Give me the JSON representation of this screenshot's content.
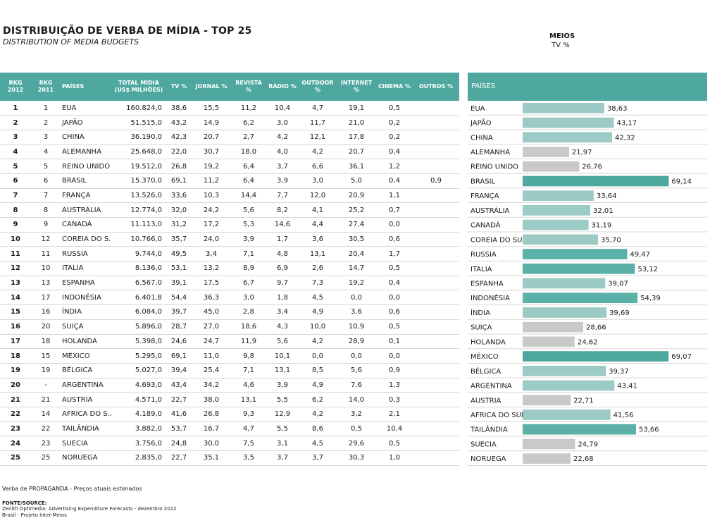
{
  "title": "DISTRIBUIÇÃO DE VERBA DE MÍDIA - TOP 25",
  "subtitle": "DISTRIBUTION OF MEDIA BUDGETS",
  "meios_label": "MEIOS",
  "meios_sub": "TV %",
  "table": {
    "headers": {
      "rkg2012": "RKG 2012",
      "rkg2011": "RKG 2011",
      "paises": "PAÍSES",
      "total": "TOTAL MÍDIA (US$ MILHÕES)",
      "tv": "TV %",
      "jornal": "JORNAL %",
      "revista": "REVISTA %",
      "radio": "RÁDIO %",
      "outdoor": "OUTDOOR %",
      "internet": "INTERNET %",
      "cinema": "CINEMA %",
      "outros": "OUTROS %"
    },
    "rows": [
      [
        "1",
        "1",
        "EUA",
        "160.824,0",
        "38,6",
        "15,5",
        "11,2",
        "10,4",
        "4,7",
        "19,1",
        "0,5",
        ""
      ],
      [
        "2",
        "2",
        "JAPÃO",
        "51.515,0",
        "43,2",
        "14,9",
        "6,2",
        "3,0",
        "11,7",
        "21,0",
        "0,2",
        ""
      ],
      [
        "3",
        "3",
        "CHINA",
        "36.190,0",
        "42,3",
        "20,7",
        "2,7",
        "4,2",
        "12,1",
        "17,8",
        "0,2",
        ""
      ],
      [
        "4",
        "4",
        "ALEMANHA",
        "25.648,0",
        "22,0",
        "30,7",
        "18,0",
        "4,0",
        "4,2",
        "20,7",
        "0,4",
        ""
      ],
      [
        "5",
        "5",
        "REINO UNIDO",
        "19.512,0",
        "26,8",
        "19,2",
        "6,4",
        "3,7",
        "6,6",
        "36,1",
        "1,2",
        ""
      ],
      [
        "6",
        "6",
        "BRASIL",
        "15.370,0",
        "69,1",
        "11,2",
        "6,4",
        "3,9",
        "3,0",
        "5,0",
        "0,4",
        "0,9"
      ],
      [
        "7",
        "7",
        "FRANÇA",
        "13.526,0",
        "33,6",
        "10,3",
        "14,4",
        "7,7",
        "12,0",
        "20,9",
        "1,1",
        ""
      ],
      [
        "8",
        "8",
        "AUSTRÁLIA",
        "12.774,0",
        "32,0",
        "24,2",
        "5,6",
        "8,2",
        "4,1",
        "25,2",
        "0,7",
        ""
      ],
      [
        "9",
        "9",
        "CANADÁ",
        "11.113,0",
        "31,2",
        "17,2",
        "5,3",
        "14,6",
        "4,4",
        "27,4",
        "0,0",
        ""
      ],
      [
        "10",
        "12",
        "COREIA DO S...",
        "10.766,0",
        "35,7",
        "24,0",
        "3,9",
        "1,7",
        "3,6",
        "30,5",
        "0,6",
        ""
      ],
      [
        "11",
        "11",
        "RUSSIA",
        "9.744,0",
        "49,5",
        "3,4",
        "7,1",
        "4,8",
        "13,1",
        "20,4",
        "1,7",
        ""
      ],
      [
        "12",
        "10",
        "ITALIA",
        "8.136,0",
        "53,1",
        "13,2",
        "8,9",
        "6,9",
        "2,6",
        "14,7",
        "0,5",
        ""
      ],
      [
        "13",
        "13",
        "ESPANHA",
        "6.567,0",
        "39,1",
        "17,5",
        "6,7",
        "9,7",
        "7,3",
        "19,2",
        "0,4",
        ""
      ],
      [
        "14",
        "17",
        "INDONÉSIA",
        "6.401,8",
        "54,4",
        "36,3",
        "3,0",
        "1,8",
        "4,5",
        "0,0",
        "0,0",
        ""
      ],
      [
        "15",
        "16",
        "ÍNDIA",
        "6.084,0",
        "39,7",
        "45,0",
        "2,8",
        "3,4",
        "4,9",
        "3,6",
        "0,6",
        ""
      ],
      [
        "16",
        "20",
        "SUIÇA",
        "5.896,0",
        "28,7",
        "27,0",
        "18,6",
        "4,3",
        "10,0",
        "10,9",
        "0,5",
        ""
      ],
      [
        "17",
        "18",
        "HOLANDA",
        "5.398,0",
        "24,6",
        "24,7",
        "11,9",
        "5,6",
        "4,2",
        "28,9",
        "0,1",
        ""
      ],
      [
        "18",
        "15",
        "MÉXICO",
        "5.295,0",
        "69,1",
        "11,0",
        "9,8",
        "10,1",
        "0,0",
        "0,0",
        "0,0",
        ""
      ],
      [
        "19",
        "19",
        "BÉLGICA",
        "5.027,0",
        "39,4",
        "25,4",
        "7,1",
        "13,1",
        "8,5",
        "5,6",
        "0,9",
        ""
      ],
      [
        "20",
        "-",
        "ARGENTINA",
        "4.693,0",
        "43,4",
        "34,2",
        "4,6",
        "3,9",
        "4,9",
        "7,6",
        "1,3",
        ""
      ],
      [
        "21",
        "21",
        "AUSTRIA",
        "4.571,0",
        "22,7",
        "38,0",
        "13,1",
        "5,5",
        "6,2",
        "14,0",
        "0,3",
        ""
      ],
      [
        "22",
        "14",
        "AFRICA DO S...",
        "4.189,0",
        "41,6",
        "26,8",
        "9,3",
        "12,9",
        "4,2",
        "3,2",
        "2,1",
        ""
      ],
      [
        "23",
        "22",
        "TAILÂNDIA",
        "3.882,0",
        "53,7",
        "16,7",
        "4,7",
        "5,5",
        "8,6",
        "0,5",
        "10,4",
        ""
      ],
      [
        "24",
        "23",
        "SUECIA",
        "3.756,0",
        "24,8",
        "30,0",
        "7,5",
        "3,1",
        "4,5",
        "29,6",
        "0,5",
        ""
      ],
      [
        "25",
        "25",
        "NORUEGA",
        "2.835,0",
        "22,7",
        "35,1",
        "3,5",
        "3,7",
        "3,7",
        "30,3",
        "1,0",
        ""
      ]
    ]
  },
  "chart_data": {
    "type": "bar",
    "orientation": "horizontal",
    "header_label": "PAÍSES",
    "categories": [
      "EUA",
      "JAPÃO",
      "CHINA",
      "ALEMANHA",
      "REINO UNIDO",
      "BRASIL",
      "FRANÇA",
      "AUSTRÁLIA",
      "CANADÁ",
      "COREIA DO SUL",
      "RUSSIA",
      "ITALIA",
      "ESPANHA",
      "INDONÉSIA",
      "ÍNDIA",
      "SUIÇA",
      "HOLANDA",
      "MÉXICO",
      "BÉLGICA",
      "ARGENTINA",
      "AUSTRIA",
      "AFRICA DO SUL",
      "TAILÂNDIA",
      "SUECIA",
      "NORUEGA"
    ],
    "values": [
      38.63,
      43.17,
      42.32,
      21.97,
      26.76,
      69.14,
      33.64,
      32.01,
      31.19,
      35.7,
      49.47,
      53.12,
      39.07,
      54.39,
      39.69,
      28.66,
      24.62,
      69.07,
      39.37,
      43.41,
      22.71,
      41.56,
      53.66,
      24.79,
      22.68
    ],
    "value_labels": [
      "38,63",
      "43,17",
      "42,32",
      "21,97",
      "26,76",
      "69,14",
      "33,64",
      "32,01",
      "31,19",
      "35,70",
      "49,47",
      "53,12",
      "39,07",
      "54,39",
      "39,69",
      "28,66",
      "24,62",
      "69,07",
      "39,37",
      "43,41",
      "22,71",
      "41,56",
      "53,66",
      "24,79",
      "22,68"
    ],
    "xlim": [
      0,
      72
    ],
    "grid": false,
    "colors": {
      "low": "#c9c9c9",
      "mid": "#9ccac4",
      "high": "#5bb0a8",
      "max": "#4fa8a0"
    }
  },
  "footnotes": {
    "line1": "Verba de PROPAGANDA - Preços atuais estimados",
    "line2": "FONTE/SOURCE:",
    "line3": "Zenith Optimedia: Advertising Expenditure Forecasts - dezembro 2012",
    "line4": "Brasil - Projeto Inter-Meios"
  }
}
